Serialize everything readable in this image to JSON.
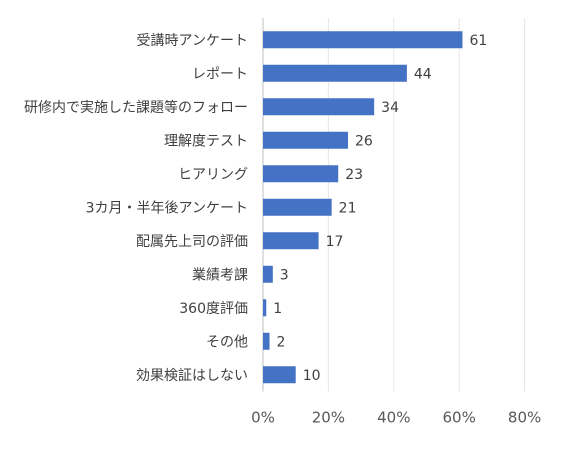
{
  "chart_data": {
    "type": "bar",
    "orientation": "horizontal",
    "categories": [
      "受講時アンケート",
      "レポート",
      "研修内で実施した課題等のフォロー",
      "理解度テスト",
      "ヒアリング",
      "3カ月・半年後アンケート",
      "配属先上司の評価",
      "業績考課",
      "360度評価",
      "その他",
      "効果検証はしない"
    ],
    "values": [
      61,
      44,
      34,
      26,
      23,
      21,
      17,
      3,
      1,
      2,
      10
    ],
    "xlim": [
      0,
      80
    ],
    "x_ticks": [
      "0%",
      "20%",
      "40%",
      "60%",
      "80%"
    ],
    "x_tick_values": [
      0,
      20,
      40,
      60,
      80
    ],
    "bar_color": "#4472C4",
    "grid": true,
    "title": "",
    "xlabel": "",
    "ylabel": ""
  }
}
